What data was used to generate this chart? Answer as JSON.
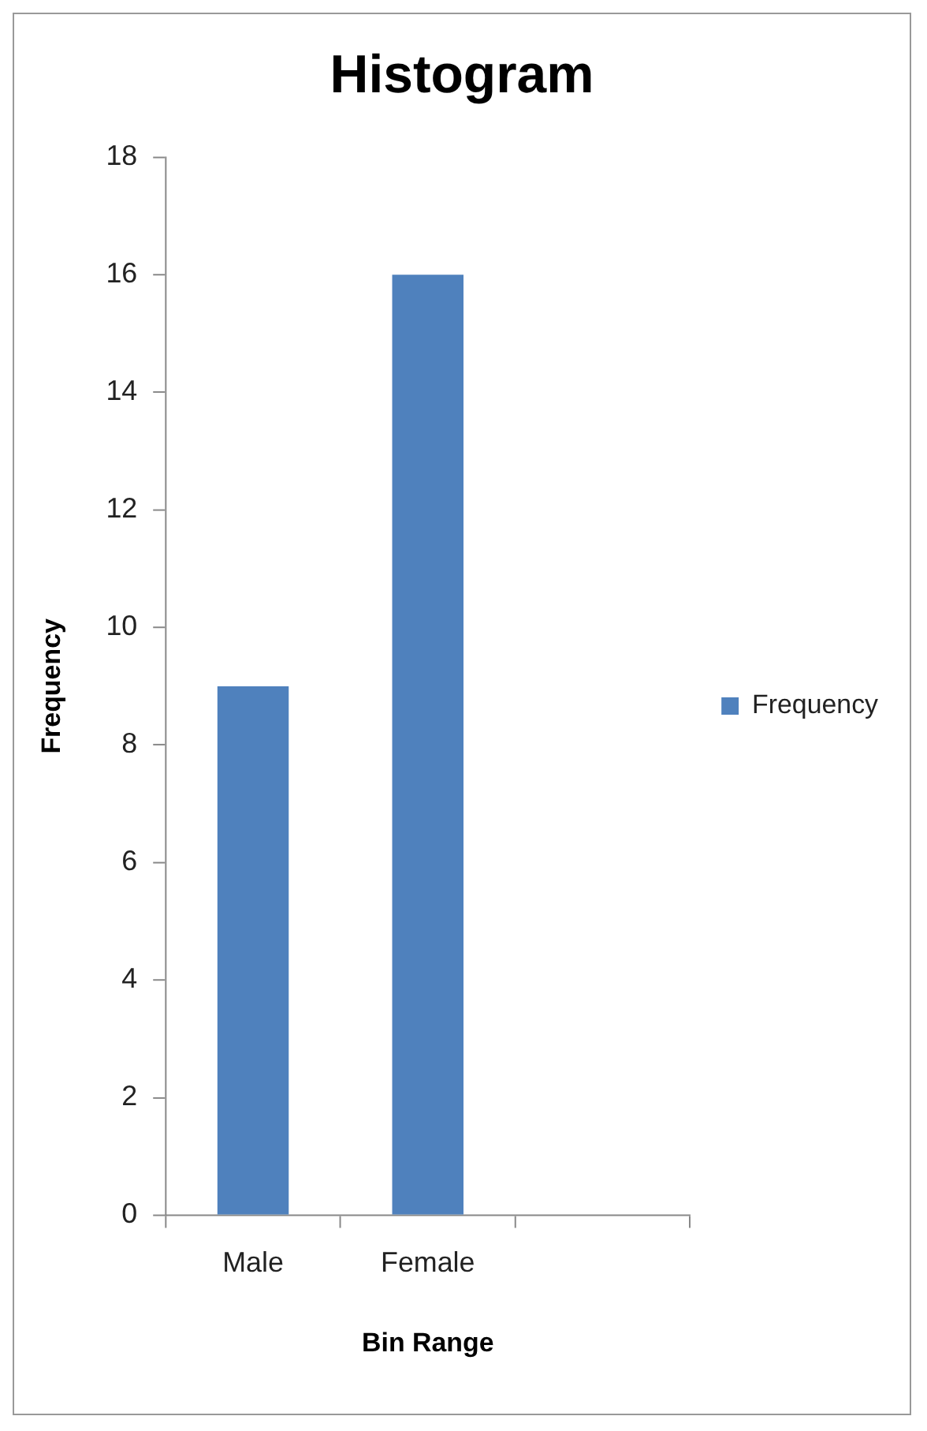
{
  "chart_data": {
    "type": "bar",
    "title": "Histogram",
    "xlabel": "Bin Range",
    "ylabel": "Frequency",
    "categories": [
      "Male",
      "Female",
      null
    ],
    "series": [
      {
        "name": "Frequency",
        "color": "#4f81bd",
        "values": [
          9,
          16,
          0
        ]
      }
    ],
    "ylim": [
      0,
      18
    ],
    "yticks": [
      0,
      2,
      4,
      6,
      8,
      10,
      12,
      14,
      16,
      18
    ],
    "grid": false,
    "legend": "right"
  }
}
